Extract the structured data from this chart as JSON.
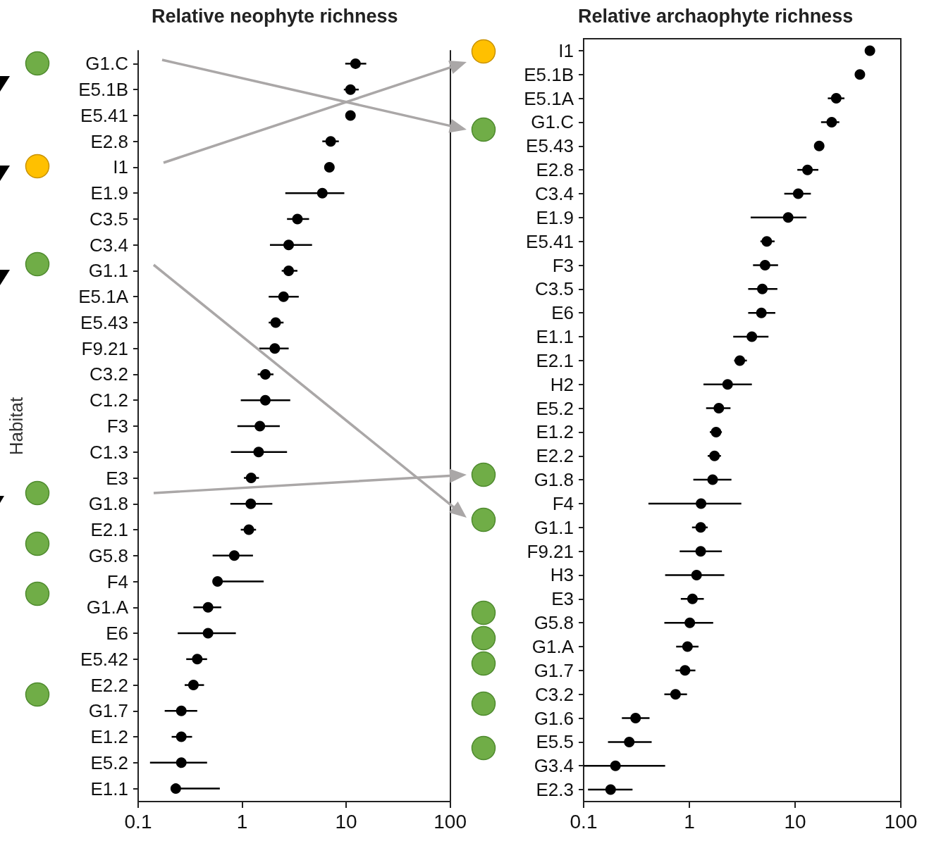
{
  "chart_data": [
    {
      "type": "scatter",
      "title": "Relative neophyte richness",
      "ylabel": "Habitat",
      "orientation": "horizontal",
      "log": "x",
      "marker": "circle",
      "color": "#000000",
      "categories": [
        "G1.C",
        "E5.1B",
        "E5.41",
        "E2.8",
        "I1",
        "E1.9",
        "C3.5",
        "C3.4",
        "G1.1",
        "E5.1A",
        "E5.43",
        "F9.21",
        "C3.2",
        "C1.2",
        "F3",
        "C1.3",
        "E3",
        "G1.8",
        "E2.1",
        "G5.8",
        "F4",
        "G1.A",
        "E6",
        "E5.42",
        "E2.2",
        "G1.7",
        "E1.2",
        "E5.2",
        "E1.1"
      ],
      "values": [
        12.3,
        11,
        11,
        7.1,
        6.9,
        5.9,
        3.4,
        2.8,
        2.8,
        2.5,
        2.1,
        2.06,
        1.67,
        1.67,
        1.48,
        1.44,
        1.22,
        1.21,
        1.16,
        0.84,
        0.58,
        0.47,
        0.47,
        0.37,
        0.34,
        0.26,
        0.26,
        0.26,
        0.23
      ],
      "errors": [
        [
          9.8,
          15.6
        ],
        [
          9.5,
          13.2
        ],
        null,
        [
          5.9,
          8.5
        ],
        null,
        [
          2.6,
          9.6
        ],
        [
          2.7,
          4.4
        ],
        [
          1.85,
          4.7
        ],
        [
          2.4,
          3.4
        ],
        [
          1.8,
          3.5
        ],
        [
          1.8,
          2.5
        ],
        [
          1.46,
          2.8
        ],
        [
          1.41,
          2.0
        ],
        [
          0.97,
          2.9
        ],
        [
          0.9,
          2.3
        ],
        [
          0.78,
          2.7
        ],
        [
          1.04,
          1.45
        ],
        [
          0.77,
          1.95
        ],
        [
          0.97,
          1.36
        ],
        [
          0.52,
          1.27
        ],
        [
          0.58,
          1.61
        ],
        [
          0.34,
          0.63
        ],
        [
          0.24,
          0.87
        ],
        [
          0.29,
          0.46
        ],
        [
          0.28,
          0.43
        ],
        [
          0.18,
          0.37
        ],
        [
          0.21,
          0.33
        ],
        [
          0.13,
          0.46
        ],
        [
          0.23,
          0.61
        ]
      ],
      "xlim": [
        0.1,
        100
      ],
      "xticks": [
        0.1,
        1,
        10,
        100
      ]
    },
    {
      "type": "scatter",
      "title": "Relative archaophyte richness",
      "orientation": "horizontal",
      "log": "x",
      "marker": "circle",
      "color": "#000000",
      "categories": [
        "I1",
        "E5.1B",
        "E5.1A",
        "G1.C",
        "E5.43",
        "E2.8",
        "C3.4",
        "E1.9",
        "E5.41",
        "F3",
        "C3.5",
        "E6",
        "E1.1",
        "E2.1",
        "H2",
        "E5.2",
        "E1.2",
        "E2.2",
        "G1.8",
        "F4",
        "G1.1",
        "F9.21",
        "H3",
        "E3",
        "G5.8",
        "G1.A",
        "G1.7",
        "C3.2",
        "G1.6",
        "E5.5",
        "G3.4",
        "E2.3"
      ],
      "values": [
        51,
        41,
        24.5,
        22.2,
        16.9,
        13.1,
        10.7,
        8.6,
        5.4,
        5.2,
        4.9,
        4.8,
        3.9,
        3.0,
        2.3,
        1.9,
        1.79,
        1.73,
        1.66,
        1.29,
        1.28,
        1.28,
        1.17,
        1.07,
        1.01,
        0.96,
        0.91,
        0.74,
        0.31,
        0.27,
        0.2,
        0.18
      ],
      "errors": [
        null,
        null,
        [
          20.4,
          29.3
        ],
        [
          17.6,
          26.2
        ],
        null,
        [
          10.5,
          16.6
        ],
        [
          7.9,
          14.1
        ],
        [
          3.8,
          12.8
        ],
        [
          4.7,
          6.4
        ],
        [
          4.0,
          6.9
        ],
        [
          3.6,
          6.8
        ],
        [
          3.6,
          6.5
        ],
        [
          2.6,
          5.6
        ],
        [
          2.65,
          3.5
        ],
        [
          1.36,
          3.9
        ],
        [
          1.44,
          2.45
        ],
        [
          1.56,
          2.03
        ],
        [
          1.49,
          1.99
        ],
        [
          1.09,
          2.5
        ],
        [
          0.41,
          3.1
        ],
        [
          1.06,
          1.49
        ],
        [
          0.81,
          2.03
        ],
        [
          0.59,
          2.14
        ],
        [
          0.83,
          1.37
        ],
        [
          0.58,
          1.68
        ],
        [
          0.75,
          1.22
        ],
        [
          0.74,
          1.14
        ],
        [
          0.58,
          0.95
        ],
        [
          0.23,
          0.42
        ],
        [
          0.17,
          0.44
        ],
        [
          0.1,
          0.59
        ],
        [
          0.11,
          0.29
        ]
      ],
      "xlim": [
        0.1,
        100
      ],
      "xticks": [
        0.1,
        1,
        10,
        100
      ]
    }
  ]
}
